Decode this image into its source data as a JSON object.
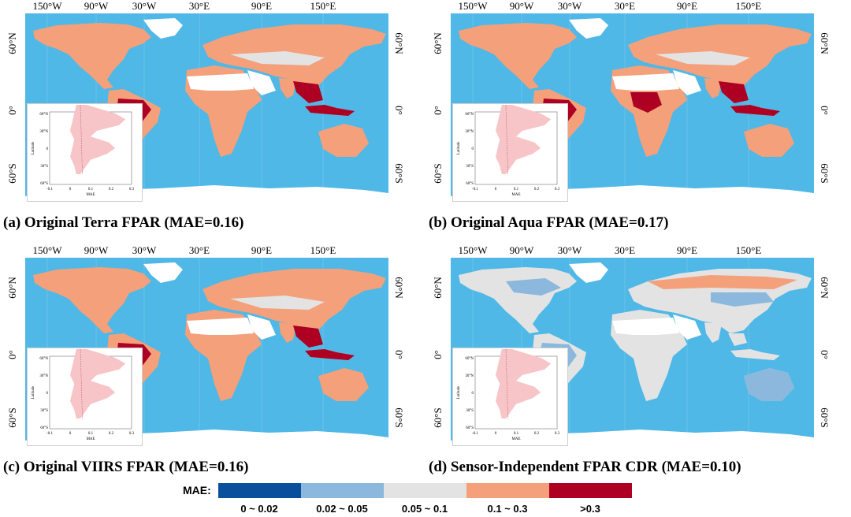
{
  "longitude_ticks": [
    "150°W",
    "90°W",
    "30°W",
    "30°E",
    "90°E",
    "150°E"
  ],
  "latitude_ticks": [
    "60°N",
    "0°",
    "60°S"
  ],
  "inset": {
    "x_ticks": [
      "-0.1",
      "0",
      "0.1",
      "0.2",
      "0.3"
    ],
    "x_label": "MAE",
    "y_ticks": [
      "60°N",
      "30°N",
      "0",
      "30°S",
      "60°S"
    ],
    "y_label": "Latitude"
  },
  "panels": [
    {
      "caption": "(a) Original Terra FPAR (MAE=0.16)"
    },
    {
      "caption": "(b) Original Aqua FPAR (MAE=0.17)"
    },
    {
      "caption": "(c) Original VIIRS FPAR (MAE=0.16)"
    },
    {
      "caption": "(d) Sensor-Independent FPAR CDR (MAE=0.10)"
    }
  ],
  "legend": {
    "title": "MAE:",
    "classes": [
      {
        "label": "0 ~ 0.02",
        "color": "#0a4f9c"
      },
      {
        "label": "0.02 ~ 0.05",
        "color": "#8bb8dc"
      },
      {
        "label": "0.05 ~ 0.1",
        "color": "#e3e3e3"
      },
      {
        "label": "0.1 ~ 0.3",
        "color": "#f4a07a"
      },
      {
        "label": ">0.3",
        "color": "#ad0022"
      }
    ]
  },
  "colors": {
    "ocean": "#4fb8e6",
    "no_data": "#ffffff",
    "inset_fill": "#f7c5c8",
    "inset_line": "#c96a74"
  }
}
